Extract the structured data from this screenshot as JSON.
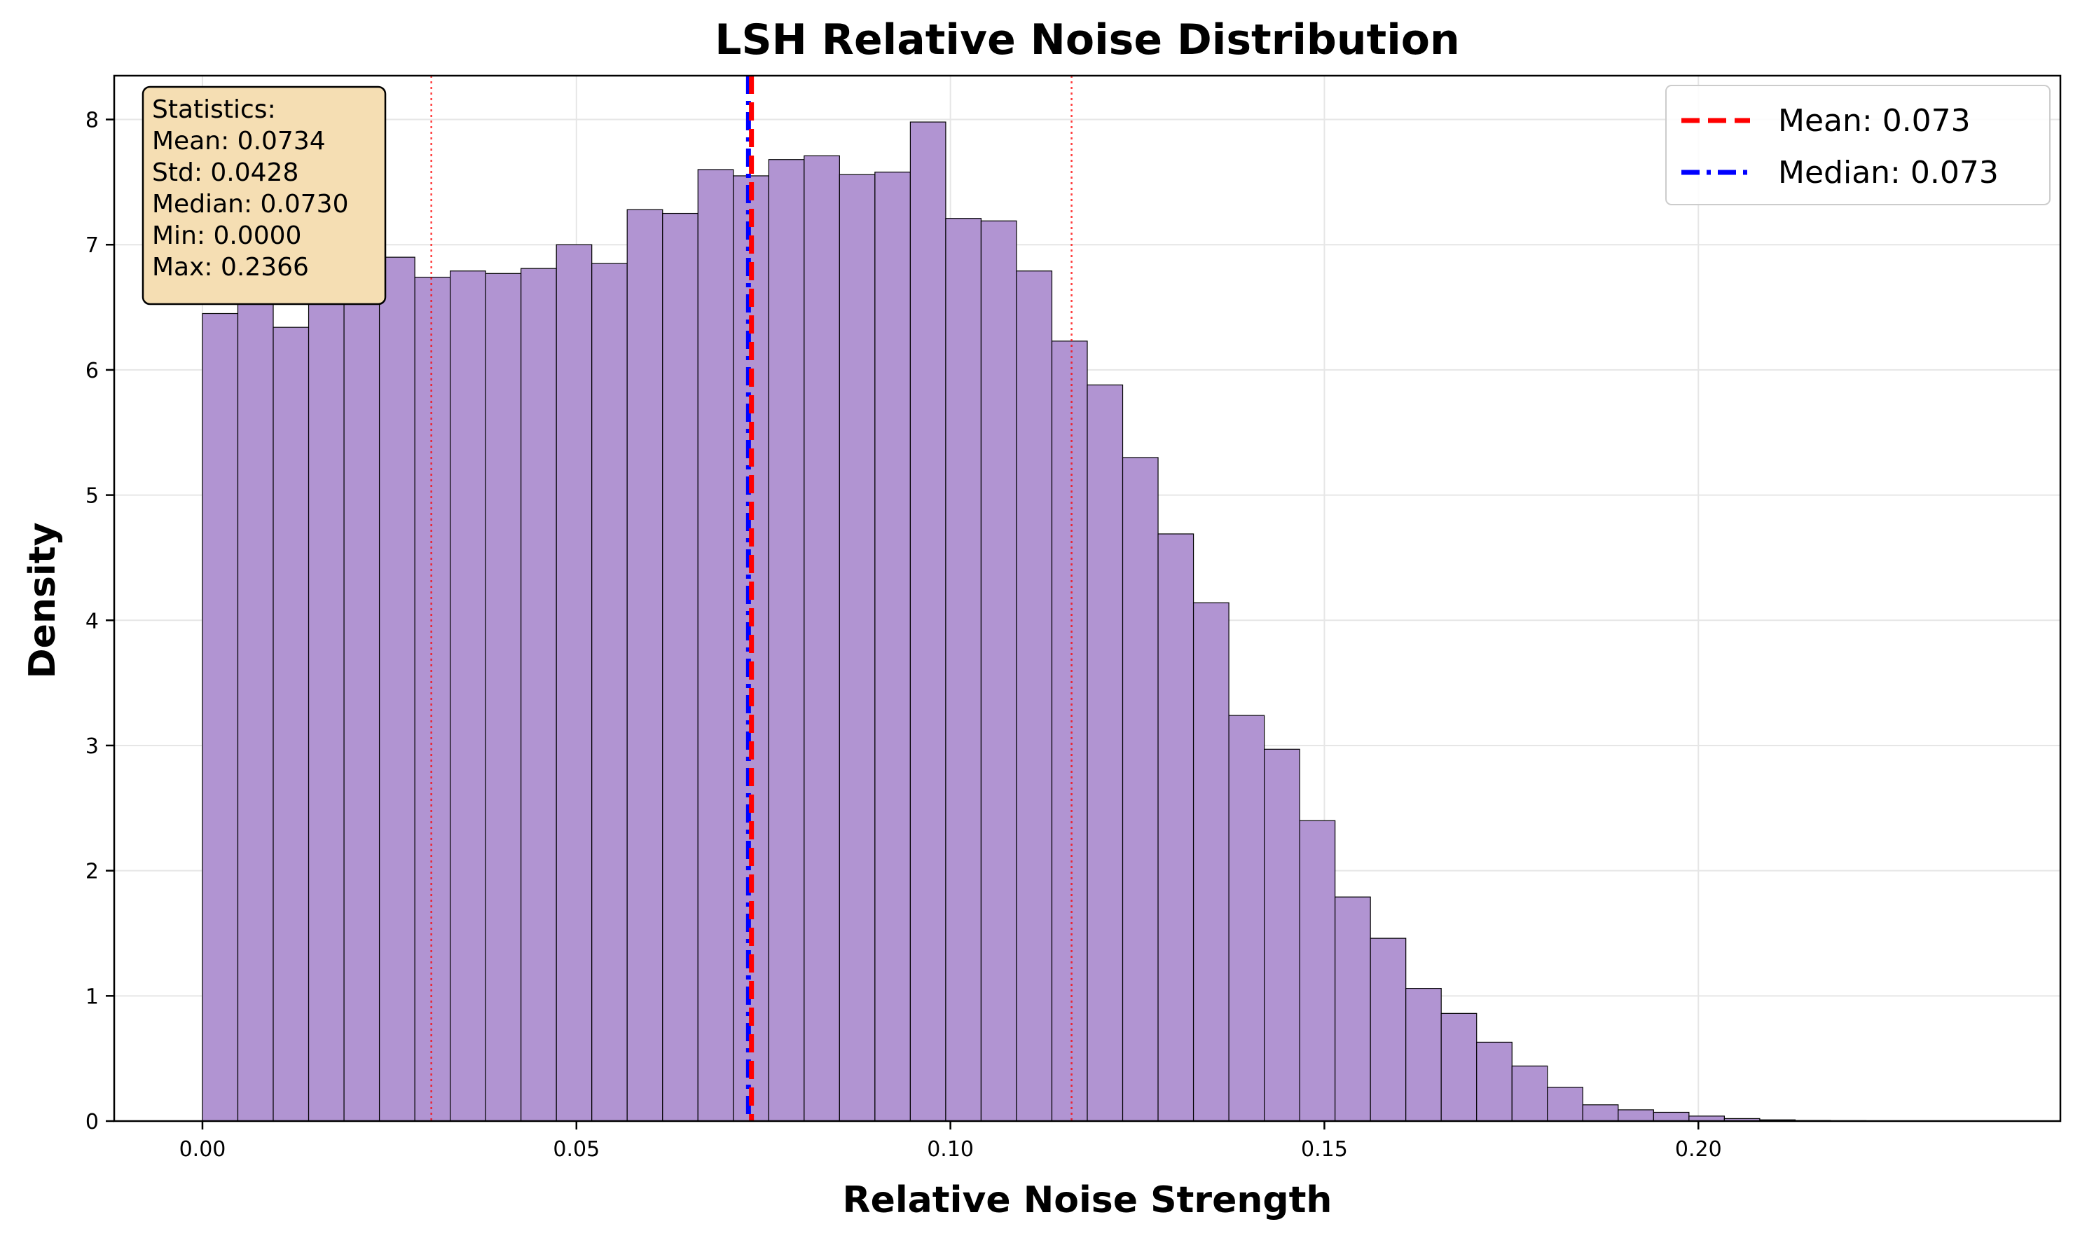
{
  "colors": {
    "bar_fill": "#b194d2",
    "bar_edge": "#000000",
    "mean_line": "#ff0000",
    "median_line": "#0000ff",
    "std_line": "#ff0000",
    "stats_box_fill": "#f5deb3",
    "grid": "#e6e6e6"
  },
  "chart_data": {
    "type": "bar",
    "title": "LSH Relative Noise Distribution",
    "xlabel": "Relative Noise Strength",
    "ylabel": "Density",
    "xlim": [
      -0.0118,
      0.2484
    ],
    "ylim": [
      0,
      8.35
    ],
    "xticks": [
      0.0,
      0.05,
      0.1,
      0.15,
      0.2
    ],
    "xtick_labels": [
      "0.00",
      "0.05",
      "0.10",
      "0.15",
      "0.20"
    ],
    "yticks": [
      0,
      1,
      2,
      3,
      4,
      5,
      6,
      7,
      8
    ],
    "ytick_labels": [
      "0",
      "1",
      "2",
      "3",
      "4",
      "5",
      "6",
      "7",
      "8"
    ],
    "grid": true,
    "bin_start": 0.0,
    "bin_width": 0.004732,
    "values": [
      6.45,
      6.65,
      6.34,
      6.55,
      6.6,
      6.9,
      6.74,
      6.79,
      6.77,
      6.81,
      7.0,
      6.85,
      7.28,
      7.25,
      7.6,
      7.55,
      7.68,
      7.71,
      7.56,
      7.58,
      7.98,
      7.21,
      7.19,
      6.79,
      6.23,
      5.88,
      5.3,
      4.69,
      4.14,
      3.24,
      2.97,
      2.4,
      1.79,
      1.46,
      1.06,
      0.86,
      0.63,
      0.44,
      0.27,
      0.13,
      0.09,
      0.07,
      0.04,
      0.02,
      0.01,
      0.005,
      0.003,
      0.002,
      0.001,
      0.001
    ],
    "mean": 0.0734,
    "median": 0.073,
    "std_lines": [
      0.0306,
      0.1162
    ],
    "legend": {
      "placement": "upper right",
      "entries": [
        {
          "label": "Mean: 0.073",
          "style": "dashed",
          "color": "#ff0000"
        },
        {
          "label": "Median: 0.073",
          "style": "dashdot",
          "color": "#0000ff"
        }
      ]
    },
    "stats_box": {
      "placement": "upper left",
      "lines": [
        "Statistics:",
        "Mean: 0.0734",
        "Std: 0.0428",
        "Median: 0.0730",
        "Min: 0.0000",
        "Max: 0.2366"
      ]
    }
  }
}
